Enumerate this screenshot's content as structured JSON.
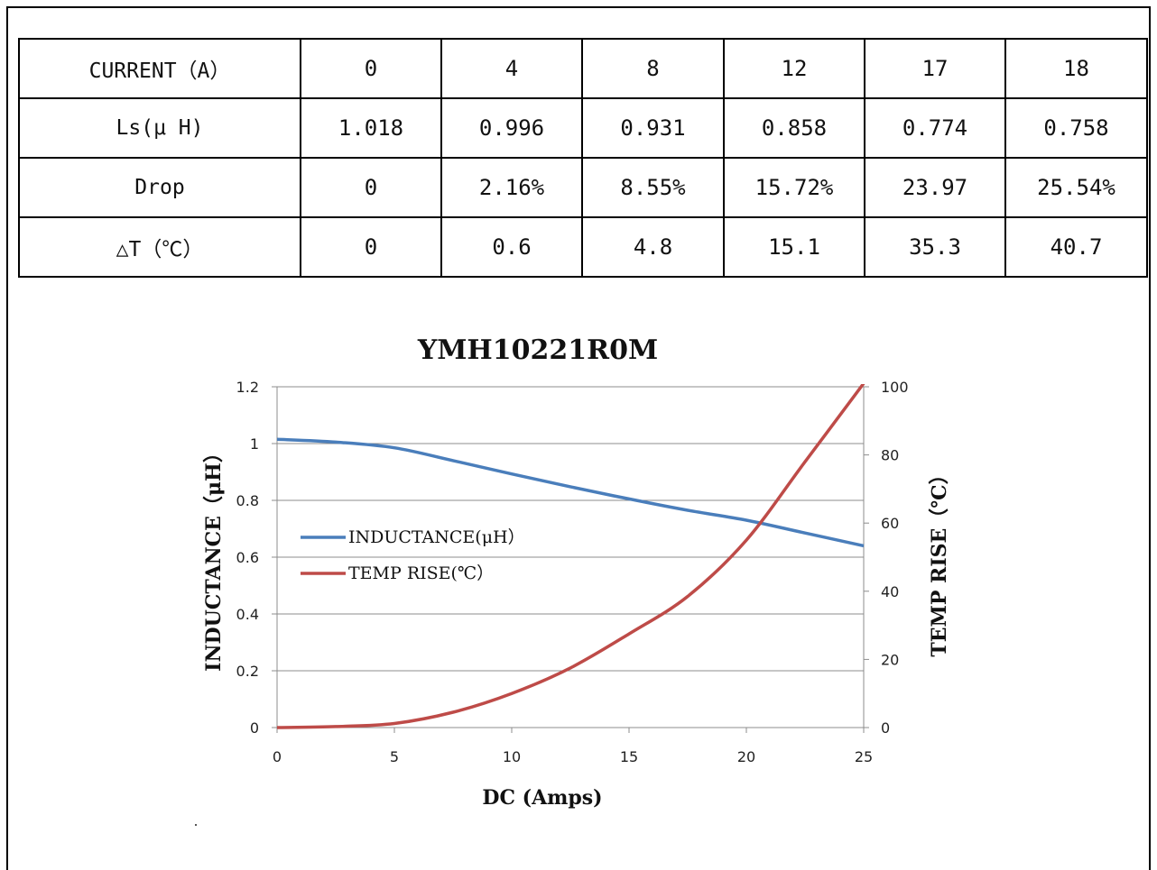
{
  "table": {
    "rows": [
      {
        "label": "CURRENT（A）",
        "cells": [
          "0",
          "4",
          "8",
          "12",
          "17",
          "18"
        ]
      },
      {
        "label": "Ls(μ H)",
        "cells": [
          "1.018",
          "0.996",
          "0.931",
          "0.858",
          "0.774",
          "0.758"
        ]
      },
      {
        "label": "Drop",
        "cells": [
          "0",
          "2.16%",
          "8.55%",
          "15.72%",
          "23.97",
          "25.54%"
        ]
      },
      {
        "label": "△T（℃）",
        "cells": [
          "0",
          "0.6",
          "4.8",
          "15.1",
          "35.3",
          "40.7"
        ]
      }
    ]
  },
  "chart_data": {
    "type": "line",
    "title": "YMH10221R0M",
    "xlabel": "DC (Amps)",
    "ylabel_left": "INDUCTANCE（μH）",
    "ylabel_right": "TEMP RISE（℃）",
    "xlim": [
      0,
      25
    ],
    "ylim_left": [
      0,
      1.2
    ],
    "ylim_right": [
      0,
      100
    ],
    "xticks": [
      "0",
      "5",
      "10",
      "15",
      "20",
      "25"
    ],
    "yticks_left": [
      "0",
      "0.2",
      "0.4",
      "0.6",
      "0.8",
      "1",
      "1.2"
    ],
    "yticks_right": [
      "0",
      "20",
      "40",
      "60",
      "80",
      "100"
    ],
    "grid": "horizontal",
    "legend_position": "center-left",
    "series": [
      {
        "name": "INDUCTANCE(μH）",
        "axis": "left",
        "color": "#4a7ebb",
        "x": [
          0,
          2.5,
          5,
          7.5,
          10,
          12.5,
          15,
          17.5,
          20,
          22.5,
          25
        ],
        "y": [
          1.015,
          1.005,
          0.985,
          0.94,
          0.893,
          0.848,
          0.805,
          0.765,
          0.73,
          0.685,
          0.64
        ]
      },
      {
        "name": "TEMP RISE(℃）",
        "axis": "right",
        "color": "#be4b48",
        "x": [
          0,
          2.5,
          5,
          7.5,
          10,
          12.5,
          15,
          17.5,
          20,
          22.5,
          25
        ],
        "y": [
          0,
          0.3,
          1.2,
          4.5,
          10,
          17.5,
          27.5,
          38.5,
          55,
          78,
          101
        ]
      }
    ]
  }
}
